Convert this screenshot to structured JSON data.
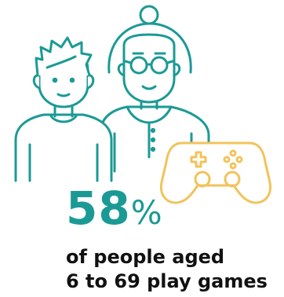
{
  "colors": {
    "accent": "#1b9a95",
    "controller": "#f2c35b",
    "text": "#111111"
  },
  "icons": {
    "boy": "boy-figure-icon",
    "grandmother": "grandmother-figure-icon",
    "controller": "game-controller-icon"
  },
  "stat": {
    "number": "58",
    "percent": "%"
  },
  "caption": {
    "line1": "of people aged",
    "line2": "6 to 69 play games"
  }
}
